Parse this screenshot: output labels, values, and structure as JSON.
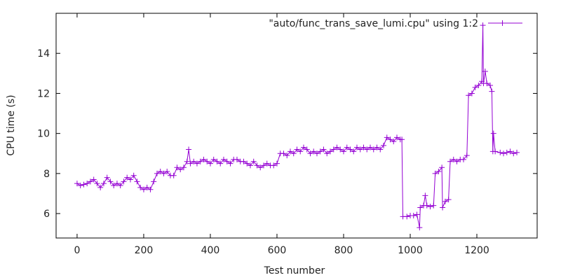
{
  "chart_data": {
    "type": "line",
    "title": "",
    "xlabel": "Test number",
    "ylabel": "CPU time (s)",
    "xlim": [
      -63,
      1381
    ],
    "ylim": [
      4.78,
      16.0
    ],
    "xticks": [
      0,
      200,
      400,
      600,
      800,
      1000,
      1200
    ],
    "yticks": [
      6,
      8,
      10,
      12,
      14
    ],
    "grid": false,
    "legend_position": "top-right",
    "series": [
      {
        "name": "\"auto/func_trans_save_lumi.cpu\" using 1:2",
        "color": "#9400d3",
        "marker": "plus",
        "points": [
          [
            0,
            7.5
          ],
          [
            10,
            7.4
          ],
          [
            20,
            7.45
          ],
          [
            30,
            7.5
          ],
          [
            40,
            7.6
          ],
          [
            50,
            7.7
          ],
          [
            60,
            7.5
          ],
          [
            70,
            7.3
          ],
          [
            80,
            7.5
          ],
          [
            90,
            7.8
          ],
          [
            100,
            7.6
          ],
          [
            110,
            7.4
          ],
          [
            120,
            7.5
          ],
          [
            130,
            7.4
          ],
          [
            140,
            7.6
          ],
          [
            150,
            7.8
          ],
          [
            160,
            7.7
          ],
          [
            170,
            7.9
          ],
          [
            180,
            7.6
          ],
          [
            190,
            7.3
          ],
          [
            200,
            7.2
          ],
          [
            210,
            7.3
          ],
          [
            220,
            7.2
          ],
          [
            230,
            7.6
          ],
          [
            240,
            8.0
          ],
          [
            250,
            8.1
          ],
          [
            260,
            8.0
          ],
          [
            270,
            8.1
          ],
          [
            280,
            7.9
          ],
          [
            290,
            7.9
          ],
          [
            300,
            8.3
          ],
          [
            310,
            8.2
          ],
          [
            320,
            8.3
          ],
          [
            330,
            8.6
          ],
          [
            335,
            9.2
          ],
          [
            340,
            8.5
          ],
          [
            350,
            8.6
          ],
          [
            360,
            8.5
          ],
          [
            370,
            8.6
          ],
          [
            380,
            8.7
          ],
          [
            390,
            8.6
          ],
          [
            400,
            8.5
          ],
          [
            410,
            8.7
          ],
          [
            420,
            8.6
          ],
          [
            430,
            8.5
          ],
          [
            440,
            8.7
          ],
          [
            450,
            8.6
          ],
          [
            460,
            8.5
          ],
          [
            470,
            8.7
          ],
          [
            480,
            8.7
          ],
          [
            490,
            8.6
          ],
          [
            500,
            8.6
          ],
          [
            510,
            8.5
          ],
          [
            520,
            8.4
          ],
          [
            530,
            8.6
          ],
          [
            540,
            8.4
          ],
          [
            550,
            8.3
          ],
          [
            560,
            8.4
          ],
          [
            570,
            8.5
          ],
          [
            580,
            8.4
          ],
          [
            590,
            8.4
          ],
          [
            600,
            8.5
          ],
          [
            610,
            9.0
          ],
          [
            620,
            9.0
          ],
          [
            630,
            8.9
          ],
          [
            640,
            9.1
          ],
          [
            650,
            9.0
          ],
          [
            660,
            9.2
          ],
          [
            670,
            9.1
          ],
          [
            680,
            9.3
          ],
          [
            690,
            9.2
          ],
          [
            700,
            9.0
          ],
          [
            710,
            9.1
          ],
          [
            720,
            9.0
          ],
          [
            730,
            9.1
          ],
          [
            740,
            9.2
          ],
          [
            750,
            9.0
          ],
          [
            760,
            9.1
          ],
          [
            770,
            9.2
          ],
          [
            780,
            9.3
          ],
          [
            790,
            9.2
          ],
          [
            800,
            9.1
          ],
          [
            810,
            9.3
          ],
          [
            820,
            9.2
          ],
          [
            830,
            9.1
          ],
          [
            840,
            9.3
          ],
          [
            850,
            9.2
          ],
          [
            860,
            9.3
          ],
          [
            870,
            9.2
          ],
          [
            880,
            9.3
          ],
          [
            890,
            9.2
          ],
          [
            900,
            9.3
          ],
          [
            910,
            9.2
          ],
          [
            920,
            9.4
          ],
          [
            930,
            9.8
          ],
          [
            940,
            9.7
          ],
          [
            950,
            9.6
          ],
          [
            960,
            9.8
          ],
          [
            970,
            9.7
          ],
          [
            975,
            9.7
          ],
          [
            978,
            5.85
          ],
          [
            990,
            5.85
          ],
          [
            1000,
            5.9
          ],
          [
            1010,
            5.9
          ],
          [
            1020,
            5.95
          ],
          [
            1028,
            5.3
          ],
          [
            1030,
            6.3
          ],
          [
            1040,
            6.4
          ],
          [
            1045,
            6.9
          ],
          [
            1050,
            6.4
          ],
          [
            1060,
            6.35
          ],
          [
            1070,
            6.4
          ],
          [
            1075,
            8.0
          ],
          [
            1085,
            8.1
          ],
          [
            1095,
            8.3
          ],
          [
            1097,
            6.3
          ],
          [
            1105,
            6.6
          ],
          [
            1115,
            6.7
          ],
          [
            1120,
            8.6
          ],
          [
            1130,
            8.7
          ],
          [
            1140,
            8.6
          ],
          [
            1150,
            8.7
          ],
          [
            1160,
            8.7
          ],
          [
            1170,
            8.9
          ],
          [
            1175,
            11.9
          ],
          [
            1185,
            12.0
          ],
          [
            1195,
            12.3
          ],
          [
            1205,
            12.4
          ],
          [
            1215,
            12.6
          ],
          [
            1218,
            15.4
          ],
          [
            1220,
            12.5
          ],
          [
            1225,
            13.1
          ],
          [
            1230,
            12.5
          ],
          [
            1240,
            12.4
          ],
          [
            1245,
            12.1
          ],
          [
            1248,
            9.1
          ],
          [
            1250,
            10.0
          ],
          [
            1255,
            9.1
          ],
          [
            1270,
            9.05
          ],
          [
            1280,
            9.0
          ],
          [
            1290,
            9.05
          ],
          [
            1300,
            9.1
          ],
          [
            1310,
            9.0
          ],
          [
            1320,
            9.05
          ]
        ]
      }
    ]
  }
}
